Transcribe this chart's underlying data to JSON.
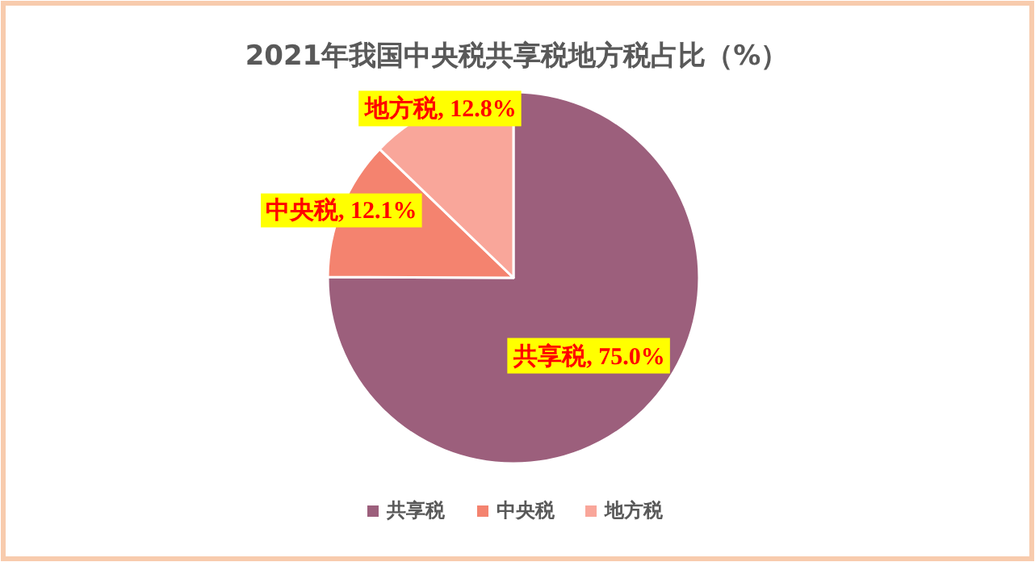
{
  "chart_data": {
    "type": "pie",
    "title": "2021年我国中央税共享税地方税占比（%）",
    "categories": [
      "共享税",
      "中央税",
      "地方税"
    ],
    "values": [
      75.0,
      12.1,
      12.8
    ],
    "colors": [
      "#9c5f7c",
      "#f4836f",
      "#f9a69a"
    ],
    "value_labels": [
      "共享税, 75.0%",
      "中央税, 12.1%",
      "地方税, 12.8%"
    ],
    "legend": "bottom"
  }
}
